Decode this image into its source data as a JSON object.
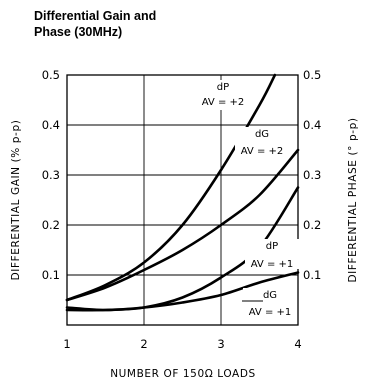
{
  "chart_data": {
    "type": "line",
    "title": "Differential Gain and Phase (30MHz)",
    "title_lines": [
      "Differential Gain and",
      "Phase (30MHz)"
    ],
    "xlabel": "NUMBER OF 150Ω LOADS",
    "ylabel_left": "DIFFERENTIAL GAIN (% p-p)",
    "ylabel_right": "DIFFERENTIAL PHASE (° p-p)",
    "xlim": [
      1,
      4
    ],
    "ylim": [
      0,
      0.5
    ],
    "x_ticks": [
      "1",
      "2",
      "3",
      "4"
    ],
    "y_ticks_left": [
      "0.1",
      "0.2",
      "0.3",
      "0.4",
      "0.5"
    ],
    "y_ticks_right": [
      "0.1",
      "0.2",
      "0.3",
      "0.4",
      "0.5"
    ],
    "grid": true,
    "series": [
      {
        "id": "dP2",
        "label_top": "dP",
        "label_bottom": "AV = +2",
        "x": [
          1,
          1.5,
          2,
          2.5,
          3,
          3.5,
          3.7
        ],
        "y": [
          0.05,
          0.08,
          0.125,
          0.2,
          0.31,
          0.44,
          0.5
        ]
      },
      {
        "id": "dG2",
        "label_top": "dG",
        "label_bottom": "AV = +2",
        "x": [
          1,
          1.5,
          2,
          2.5,
          3,
          3.5,
          4
        ],
        "y": [
          0.05,
          0.075,
          0.11,
          0.15,
          0.2,
          0.26,
          0.35
        ]
      },
      {
        "id": "dP1",
        "label_top": "dP",
        "label_bottom": "AV = +1",
        "x": [
          1,
          1.5,
          2,
          2.5,
          3,
          3.5,
          4
        ],
        "y": [
          0.03,
          0.03,
          0.035,
          0.055,
          0.095,
          0.155,
          0.275
        ]
      },
      {
        "id": "dG1",
        "label_top": "dG",
        "label_bottom": "AV = +1",
        "x": [
          1,
          1.5,
          2,
          2.5,
          3,
          3.5,
          4
        ],
        "y": [
          0.035,
          0.03,
          0.035,
          0.045,
          0.06,
          0.085,
          0.105
        ]
      }
    ]
  }
}
